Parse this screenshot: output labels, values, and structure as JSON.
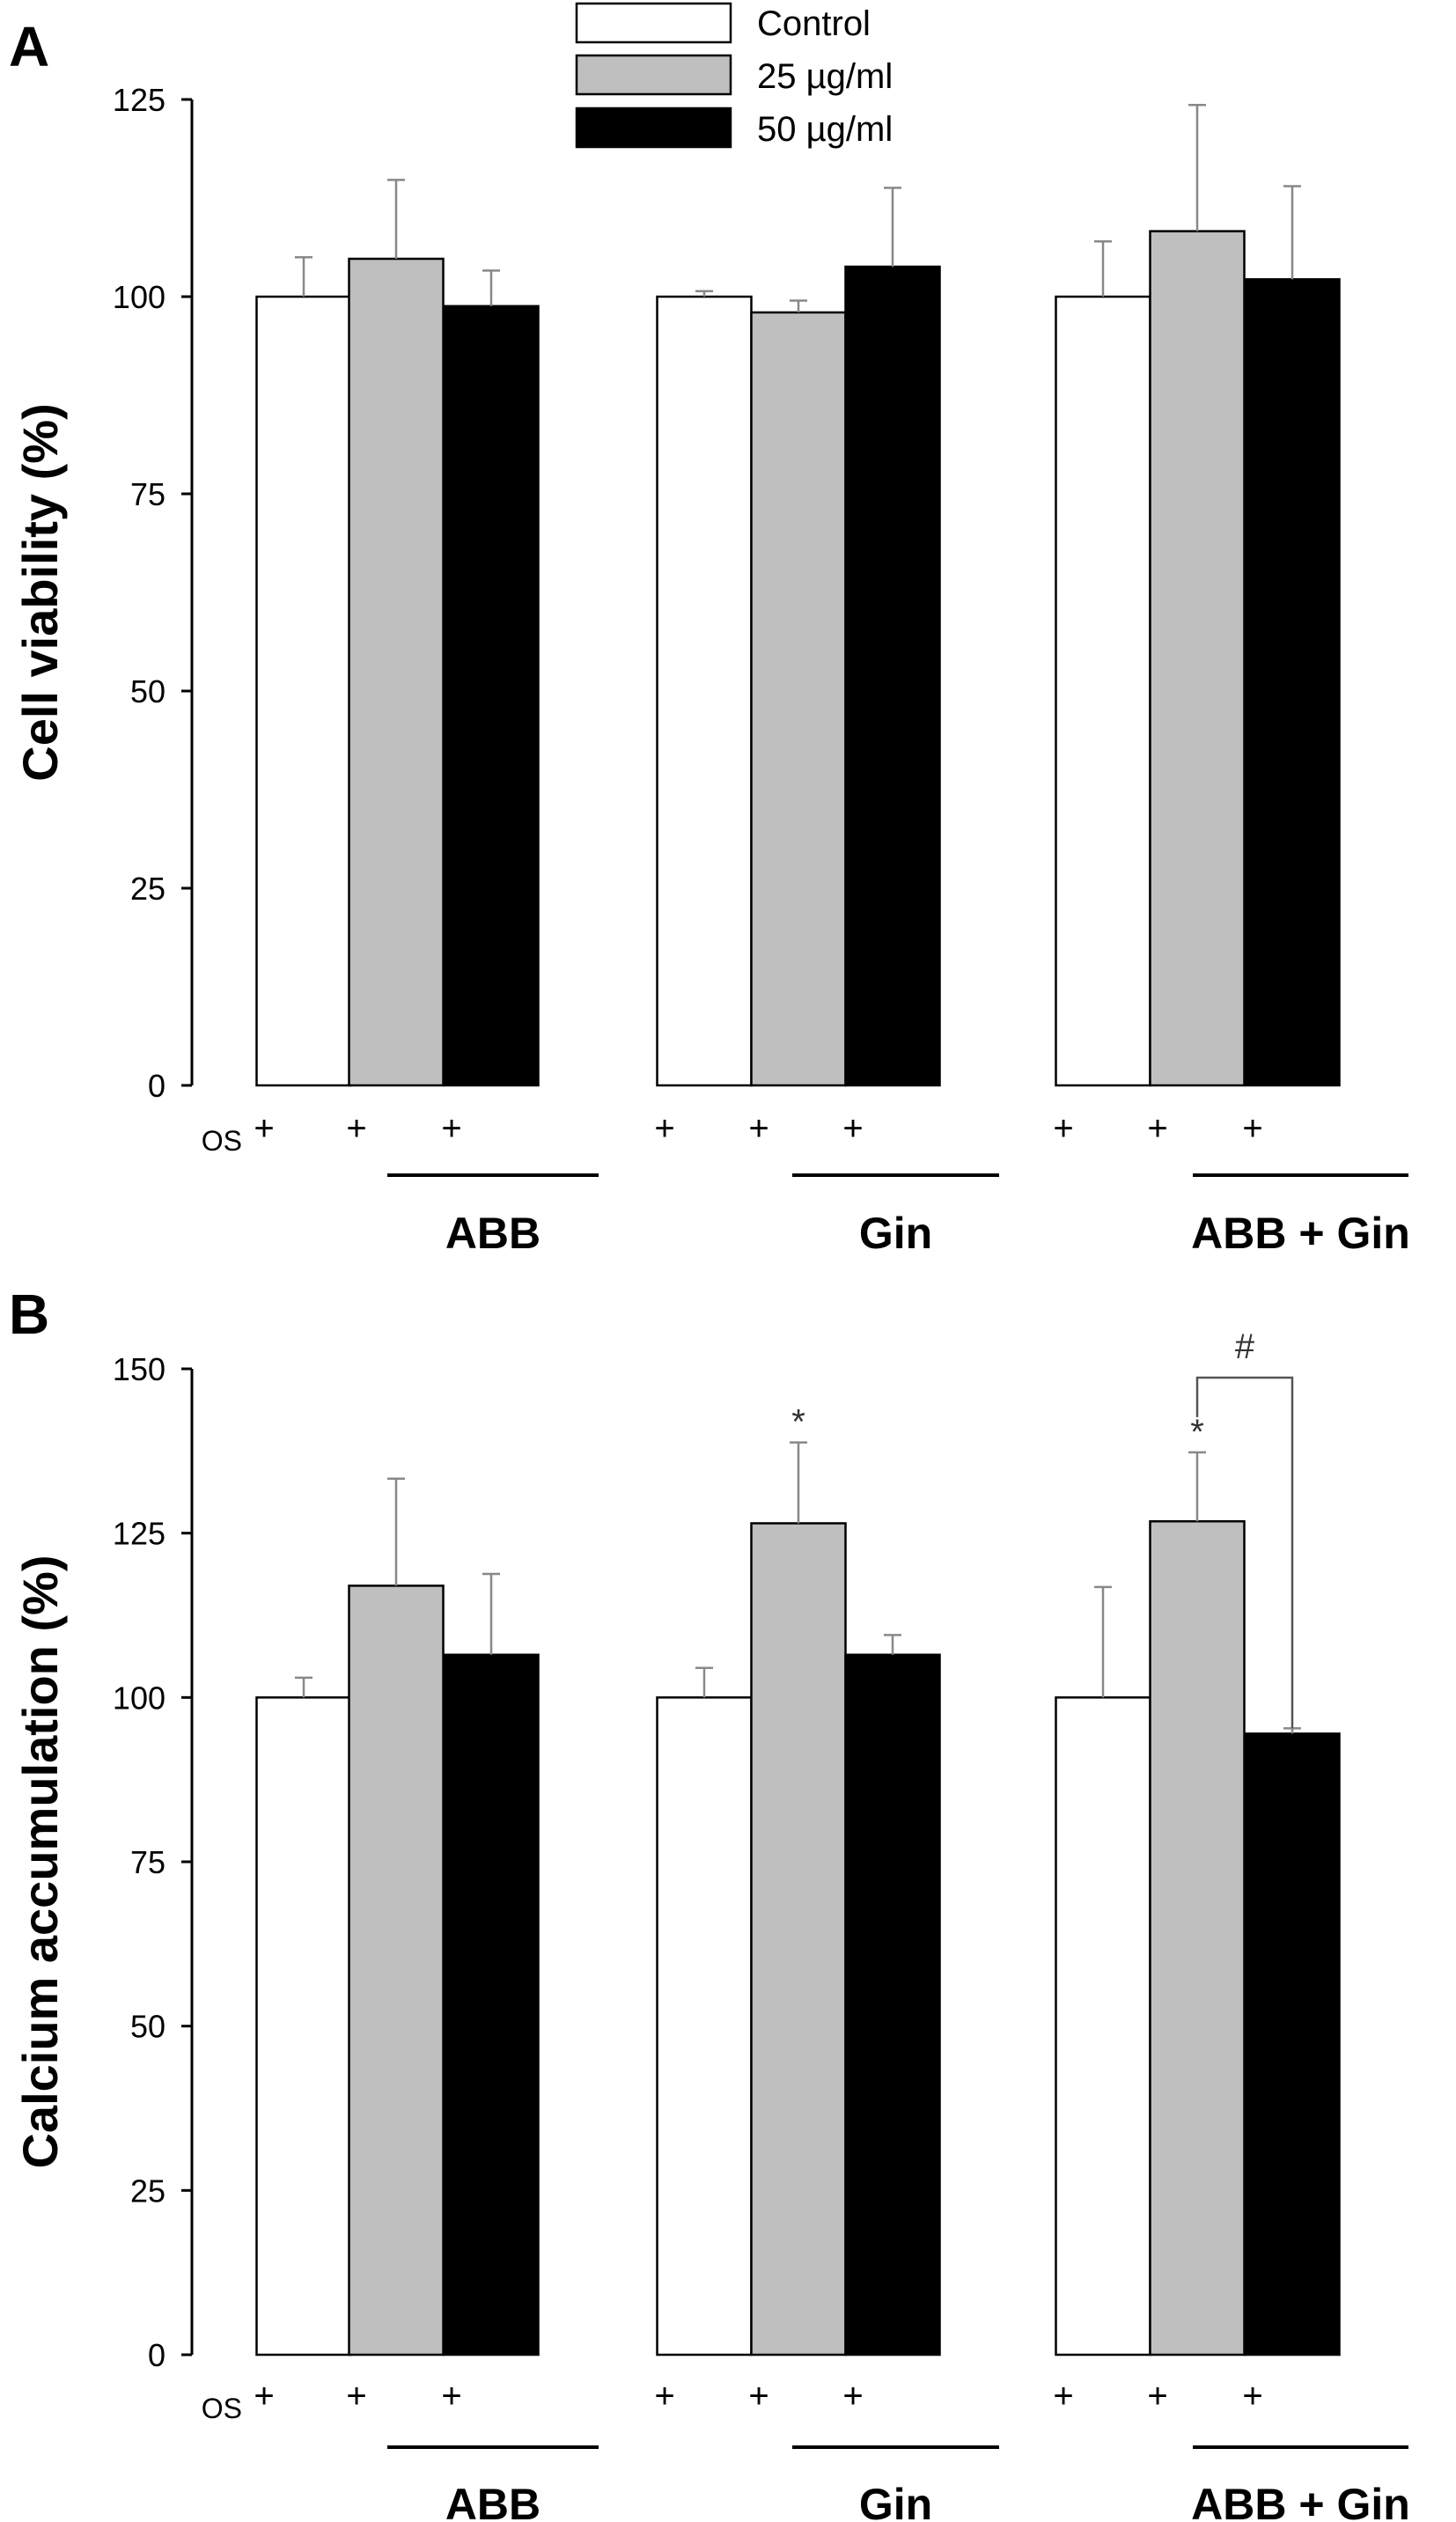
{
  "legend": [
    {
      "label": "Control",
      "color": "#ffffff"
    },
    {
      "label": "25 µg/ml",
      "color": "#bfbfbf"
    },
    {
      "label": "50 µg/ml",
      "color": "#000000"
    }
  ],
  "chart_data": [
    {
      "type": "bar",
      "panel_label": "A",
      "ylabel": "Cell viability (%)",
      "ylim": [
        0,
        125
      ],
      "yticks": [
        0,
        25,
        50,
        75,
        100,
        125
      ],
      "row_label": "OS",
      "os_marks": [
        "+",
        "+",
        "+",
        "+",
        "+",
        "+",
        "+",
        "+",
        "+"
      ],
      "groups": [
        "ABB",
        "Gin",
        "ABB + Gin"
      ],
      "series": [
        {
          "name": "Control",
          "values": [
            100,
            100,
            100
          ],
          "errors": [
            5,
            0.7,
            7
          ]
        },
        {
          "name": "25 µg/ml",
          "values": [
            104.8,
            98,
            108.3
          ],
          "errors": [
            10,
            1.5,
            16
          ]
        },
        {
          "name": "50 µg/ml",
          "values": [
            98.8,
            103.8,
            102.2
          ],
          "errors": [
            4.5,
            10,
            11.8
          ]
        }
      ],
      "annotations": []
    },
    {
      "type": "bar",
      "panel_label": "B",
      "ylabel": "Calcium accumulation (%)",
      "ylim": [
        0,
        150
      ],
      "yticks": [
        0,
        25,
        50,
        75,
        100,
        125,
        150
      ],
      "row_label": "OS",
      "os_marks": [
        "+",
        "+",
        "+",
        "+",
        "+",
        "+",
        "+",
        "+",
        "+"
      ],
      "groups": [
        "ABB",
        "Gin",
        "ABB + Gin"
      ],
      "series": [
        {
          "name": "Control",
          "values": [
            100,
            100,
            100
          ],
          "errors": [
            3,
            4.5,
            16.8
          ]
        },
        {
          "name": "25 µg/ml",
          "values": [
            117,
            126.5,
            126.8
          ],
          "errors": [
            16.3,
            12.3,
            10.5
          ]
        },
        {
          "name": "50 µg/ml",
          "values": [
            106.5,
            106.5,
            94.5
          ],
          "errors": [
            12.3,
            3,
            0.8
          ]
        }
      ],
      "annotations": [
        {
          "text": "*",
          "group": 1,
          "series": 1
        },
        {
          "text": "*",
          "group": 2,
          "series": 1
        },
        {
          "text": "#",
          "bracket": {
            "group": 2,
            "from_series": 1,
            "to_series": 2
          }
        }
      ]
    }
  ]
}
